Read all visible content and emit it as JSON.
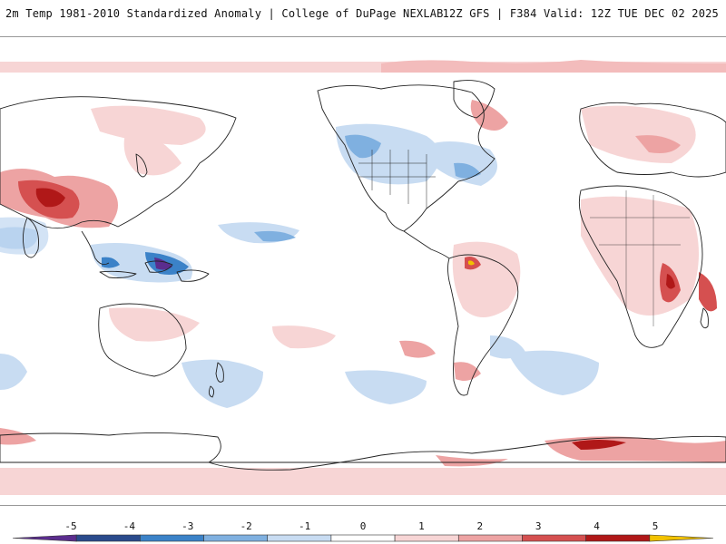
{
  "header": {
    "title": "2m Temp 1981-2010 Standardized Anomaly | College of DuPage NEXLAB",
    "run_info": "12Z GFS | F384 Valid: 12Z TUE DEC 02 2025"
  },
  "colorbar": {
    "labels": [
      "-5",
      "-4",
      "-3",
      "-2",
      "-1",
      "0",
      "1",
      "2",
      "3",
      "4",
      "5"
    ],
    "colors": [
      "#5b2d8e",
      "#2a4a8c",
      "#3b82c8",
      "#7fb0e0",
      "#c8dcf2",
      "#ffffff",
      "#f7d5d5",
      "#eda3a3",
      "#d55050",
      "#b01818",
      "#f2c200"
    ]
  },
  "map": {
    "colors": {
      "land_outline": "#222222",
      "ocean": "#ffffff",
      "warm_light": "#f7d5d5",
      "warm_mid": "#eda3a3",
      "warm_strong": "#d55050",
      "cool_light": "#c8dcf2",
      "cool_mid": "#7fb0e0",
      "cool_strong": "#3b82c8"
    }
  }
}
